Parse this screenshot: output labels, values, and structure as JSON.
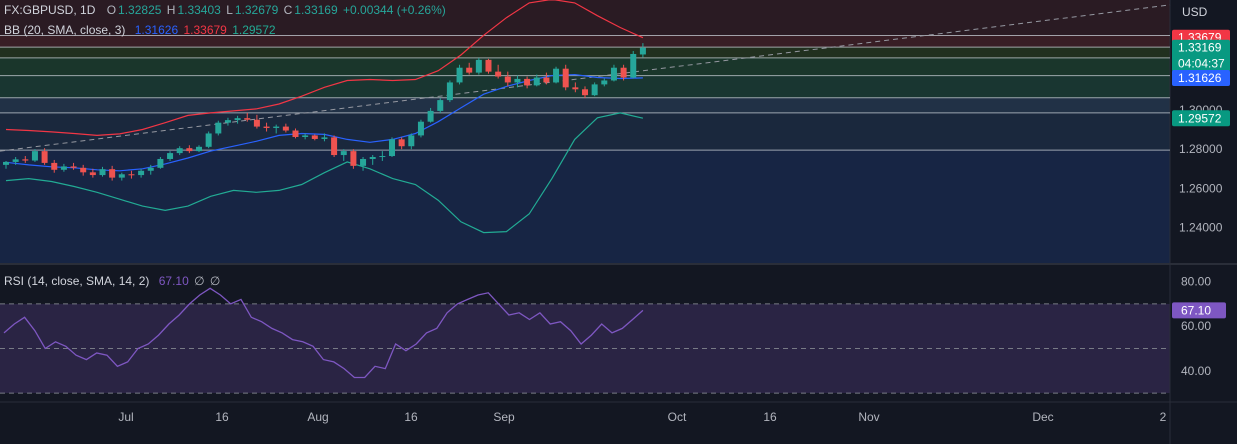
{
  "header": {
    "symbol": "FX:GBPUSD, 1D",
    "open_label": "O",
    "open": "1.32825",
    "high_label": "H",
    "high": "1.33403",
    "low_label": "L",
    "low": "1.32679",
    "close_label": "C",
    "close": "1.33169",
    "change": "+0.00344 (+0.26%)"
  },
  "bb_legend": {
    "name": "BB (20, SMA, close, 3)",
    "basis": "1.31626",
    "upper": "1.33679",
    "lower": "1.29572"
  },
  "rsi_legend": {
    "name": "RSI (14, close, SMA, 14, 2)",
    "value": "67.10",
    "extra1": "∅",
    "extra2": "∅"
  },
  "currency": "USD",
  "countdown": "04:04:37",
  "colors": {
    "up": "#26a69a",
    "down": "#ef5350",
    "basis": "#2962ff",
    "upper": "#f23645",
    "lower": "#22ab94",
    "rsi": "#7e57c2"
  },
  "chart_data": [
    {
      "type": "candlestick",
      "title": "FX:GBPUSD, 1D",
      "ylim": [
        1.222,
        1.356
      ],
      "y_ticks": [
        "1.24000",
        "1.26000",
        "1.28000",
        "1.30000"
      ],
      "price_labels": [
        {
          "value": "1.33679",
          "role": "upper",
          "color": "#f23645"
        },
        {
          "value": "1.33169",
          "role": "last",
          "color": "#089981"
        },
        {
          "value": "1.31626",
          "role": "basis",
          "color": "#2962ff"
        },
        {
          "value": "1.29572",
          "role": "lower",
          "color": "#089981"
        }
      ],
      "x_ticks": [
        "Jul",
        "16",
        "Aug",
        "16",
        "Sep",
        "Oct",
        "16",
        "Nov",
        "Dec",
        "2"
      ],
      "horizontal_levels": [
        1.3379,
        1.332,
        1.3265,
        1.3175,
        1.3062,
        1.2985,
        1.2795
      ],
      "trend_line": {
        "start": 1.279,
        "end": 1.3535
      },
      "candles": [
        {
          "o": 1.272,
          "h": 1.274,
          "l": 1.27,
          "c": 1.2735
        },
        {
          "o": 1.2735,
          "h": 1.276,
          "l": 1.272,
          "c": 1.2748
        },
        {
          "o": 1.2748,
          "h": 1.2765,
          "l": 1.273,
          "c": 1.2742
        },
        {
          "o": 1.2742,
          "h": 1.28,
          "l": 1.2735,
          "c": 1.279
        },
        {
          "o": 1.279,
          "h": 1.2805,
          "l": 1.272,
          "c": 1.273
        },
        {
          "o": 1.273,
          "h": 1.2745,
          "l": 1.268,
          "c": 1.2695
        },
        {
          "o": 1.2695,
          "h": 1.2725,
          "l": 1.2685,
          "c": 1.2712
        },
        {
          "o": 1.2712,
          "h": 1.273,
          "l": 1.2695,
          "c": 1.2705
        },
        {
          "o": 1.2705,
          "h": 1.272,
          "l": 1.2665,
          "c": 1.2682
        },
        {
          "o": 1.2682,
          "h": 1.27,
          "l": 1.2655,
          "c": 1.2668
        },
        {
          "o": 1.2668,
          "h": 1.271,
          "l": 1.266,
          "c": 1.2698
        },
        {
          "o": 1.2698,
          "h": 1.2715,
          "l": 1.264,
          "c": 1.2655
        },
        {
          "o": 1.2655,
          "h": 1.268,
          "l": 1.264,
          "c": 1.2672
        },
        {
          "o": 1.2672,
          "h": 1.269,
          "l": 1.265,
          "c": 1.2668
        },
        {
          "o": 1.2668,
          "h": 1.27,
          "l": 1.2655,
          "c": 1.269
        },
        {
          "o": 1.269,
          "h": 1.272,
          "l": 1.267,
          "c": 1.2705
        },
        {
          "o": 1.2705,
          "h": 1.276,
          "l": 1.27,
          "c": 1.275
        },
        {
          "o": 1.275,
          "h": 1.279,
          "l": 1.274,
          "c": 1.278
        },
        {
          "o": 1.278,
          "h": 1.2815,
          "l": 1.277,
          "c": 1.2805
        },
        {
          "o": 1.2805,
          "h": 1.282,
          "l": 1.278,
          "c": 1.279
        },
        {
          "o": 1.279,
          "h": 1.282,
          "l": 1.2785,
          "c": 1.2812
        },
        {
          "o": 1.2812,
          "h": 1.289,
          "l": 1.2805,
          "c": 1.288
        },
        {
          "o": 1.288,
          "h": 1.2945,
          "l": 1.287,
          "c": 1.2935
        },
        {
          "o": 1.2935,
          "h": 1.296,
          "l": 1.292,
          "c": 1.2948
        },
        {
          "o": 1.2948,
          "h": 1.297,
          "l": 1.293,
          "c": 1.2958
        },
        {
          "o": 1.2958,
          "h": 1.2985,
          "l": 1.294,
          "c": 1.295
        },
        {
          "o": 1.295,
          "h": 1.2975,
          "l": 1.2905,
          "c": 1.2915
        },
        {
          "o": 1.2915,
          "h": 1.2935,
          "l": 1.289,
          "c": 1.2908
        },
        {
          "o": 1.2908,
          "h": 1.2925,
          "l": 1.288,
          "c": 1.2915
        },
        {
          "o": 1.2915,
          "h": 1.293,
          "l": 1.2885,
          "c": 1.2895
        },
        {
          "o": 1.2895,
          "h": 1.2905,
          "l": 1.2855,
          "c": 1.2862
        },
        {
          "o": 1.2862,
          "h": 1.288,
          "l": 1.285,
          "c": 1.287
        },
        {
          "o": 1.287,
          "h": 1.2875,
          "l": 1.2845,
          "c": 1.2852
        },
        {
          "o": 1.2852,
          "h": 1.288,
          "l": 1.284,
          "c": 1.286
        },
        {
          "o": 1.286,
          "h": 1.287,
          "l": 1.276,
          "c": 1.277
        },
        {
          "o": 1.277,
          "h": 1.28,
          "l": 1.274,
          "c": 1.279
        },
        {
          "o": 1.279,
          "h": 1.28,
          "l": 1.27,
          "c": 1.2715
        },
        {
          "o": 1.2715,
          "h": 1.276,
          "l": 1.269,
          "c": 1.275
        },
        {
          "o": 1.275,
          "h": 1.277,
          "l": 1.272,
          "c": 1.276
        },
        {
          "o": 1.276,
          "h": 1.279,
          "l": 1.274,
          "c": 1.2765
        },
        {
          "o": 1.2765,
          "h": 1.286,
          "l": 1.276,
          "c": 1.285
        },
        {
          "o": 1.285,
          "h": 1.286,
          "l": 1.28,
          "c": 1.2815
        },
        {
          "o": 1.2815,
          "h": 1.288,
          "l": 1.28,
          "c": 1.287
        },
        {
          "o": 1.287,
          "h": 1.295,
          "l": 1.286,
          "c": 1.294
        },
        {
          "o": 1.294,
          "h": 1.301,
          "l": 1.2935,
          "c": 1.2995
        },
        {
          "o": 1.2995,
          "h": 1.306,
          "l": 1.2985,
          "c": 1.305
        },
        {
          "o": 1.305,
          "h": 1.315,
          "l": 1.304,
          "c": 1.314
        },
        {
          "o": 1.314,
          "h": 1.323,
          "l": 1.313,
          "c": 1.3215
        },
        {
          "o": 1.3215,
          "h": 1.324,
          "l": 1.318,
          "c": 1.319
        },
        {
          "o": 1.319,
          "h": 1.3265,
          "l": 1.318,
          "c": 1.3255
        },
        {
          "o": 1.3255,
          "h": 1.326,
          "l": 1.3185,
          "c": 1.3195
        },
        {
          "o": 1.3195,
          "h": 1.323,
          "l": 1.316,
          "c": 1.317
        },
        {
          "o": 1.317,
          "h": 1.3195,
          "l": 1.312,
          "c": 1.314
        },
        {
          "o": 1.314,
          "h": 1.3175,
          "l": 1.3115,
          "c": 1.3158
        },
        {
          "o": 1.3158,
          "h": 1.317,
          "l": 1.311,
          "c": 1.3125
        },
        {
          "o": 1.3125,
          "h": 1.318,
          "l": 1.312,
          "c": 1.3165
        },
        {
          "o": 1.3165,
          "h": 1.319,
          "l": 1.313,
          "c": 1.314
        },
        {
          "o": 1.314,
          "h": 1.322,
          "l": 1.3135,
          "c": 1.321
        },
        {
          "o": 1.321,
          "h": 1.323,
          "l": 1.31,
          "c": 1.3115
        },
        {
          "o": 1.3115,
          "h": 1.314,
          "l": 1.309,
          "c": 1.3105
        },
        {
          "o": 1.3105,
          "h": 1.312,
          "l": 1.306,
          "c": 1.3075
        },
        {
          "o": 1.3075,
          "h": 1.314,
          "l": 1.307,
          "c": 1.313
        },
        {
          "o": 1.313,
          "h": 1.316,
          "l": 1.312,
          "c": 1.315
        },
        {
          "o": 1.315,
          "h": 1.323,
          "l": 1.3145,
          "c": 1.3215
        },
        {
          "o": 1.3215,
          "h": 1.323,
          "l": 1.315,
          "c": 1.3165
        },
        {
          "o": 1.3165,
          "h": 1.33,
          "l": 1.316,
          "c": 1.3285
        },
        {
          "o": 1.32825,
          "h": 1.33403,
          "l": 1.32679,
          "c": 1.33169
        }
      ],
      "bb_upper": [
        1.29,
        1.2895,
        1.2888,
        1.288,
        1.287,
        1.2878,
        1.29,
        1.2935,
        1.2972,
        1.2985,
        1.2995,
        1.3005,
        1.303,
        1.307,
        1.3115,
        1.315,
        1.3155,
        1.315,
        1.3155,
        1.32,
        1.328,
        1.338,
        1.347,
        1.3545,
        1.3563,
        1.3545,
        1.348,
        1.342,
        1.3368
      ],
      "bb_basis": [
        1.2733,
        1.272,
        1.271,
        1.2705,
        1.2695,
        1.269,
        1.27,
        1.2725,
        1.2755,
        1.279,
        1.2815,
        1.284,
        1.287,
        1.288,
        1.2875,
        1.285,
        1.2835,
        1.285,
        1.288,
        1.294,
        1.301,
        1.308,
        1.312,
        1.315,
        1.3175,
        1.318,
        1.3165,
        1.316,
        1.3163
      ],
      "bb_lower": [
        1.264,
        1.265,
        1.2635,
        1.261,
        1.258,
        1.2545,
        1.251,
        1.2488,
        1.251,
        1.256,
        1.259,
        1.258,
        1.259,
        1.262,
        1.268,
        1.2735,
        1.27,
        1.265,
        1.262,
        1.254,
        1.243,
        1.2375,
        1.238,
        1.247,
        1.265,
        1.285,
        1.296,
        1.2985,
        1.2958
      ]
    },
    {
      "type": "line",
      "title": "RSI (14, close, SMA, 14, 2)",
      "ylim": [
        26,
        87
      ],
      "y_ticks": [
        "80.00",
        "60.00",
        "40.00"
      ],
      "bands": [
        70,
        50,
        30
      ],
      "last_label": "67.10",
      "values": [
        57,
        61,
        64,
        58,
        50,
        53,
        51,
        47,
        45,
        48,
        47,
        42,
        44,
        50,
        52,
        56,
        61,
        65,
        70,
        74,
        77,
        74,
        70,
        72,
        64,
        62,
        59,
        57,
        54,
        53,
        51,
        45,
        44,
        41,
        37,
        37,
        42,
        41,
        52,
        49,
        52,
        57,
        59,
        66,
        70,
        72,
        74,
        75,
        70,
        65,
        66,
        63,
        66,
        61,
        62,
        58,
        52,
        56,
        61,
        57,
        59,
        63,
        67.1
      ]
    }
  ]
}
